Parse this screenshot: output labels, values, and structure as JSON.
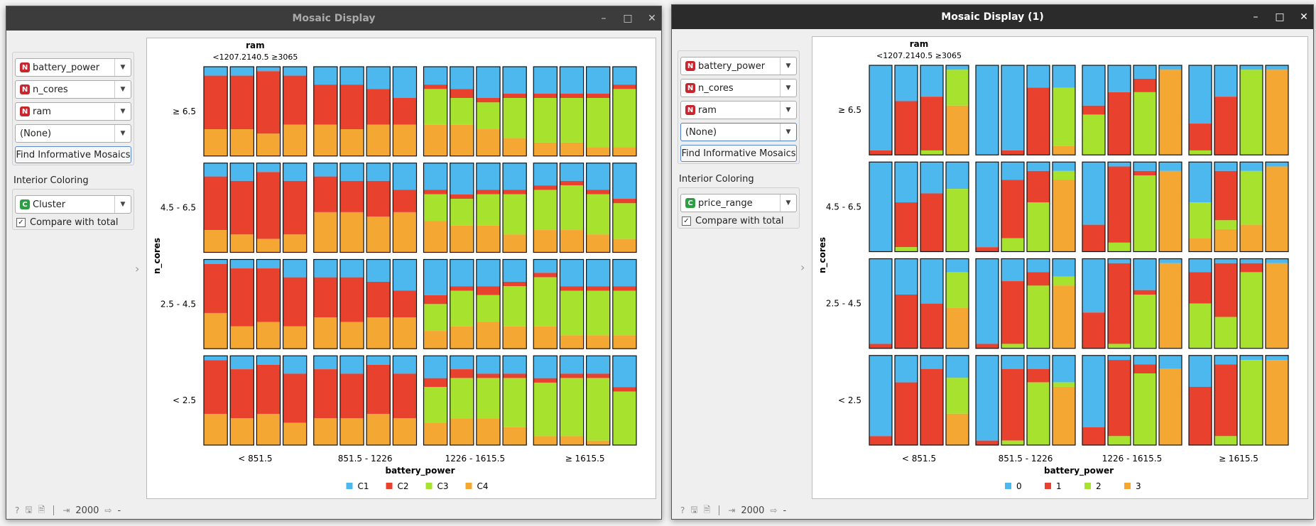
{
  "colors": {
    "blue": "#4cb8ee",
    "red": "#e8412e",
    "green": "#a6e22e",
    "orange": "#f5a733"
  },
  "windows": [
    {
      "title": "Mosaic Display",
      "variables": [
        "battery_power",
        "n_cores",
        "ram",
        "(None)"
      ],
      "find_button": "Find Informative Mosaics",
      "interior_label": "Interior Coloring",
      "interior_value": "Cluster",
      "compare_label": "Compare with total",
      "compare_checked": "✓",
      "status_count": "2000",
      "status_out": "-",
      "plot": {
        "top_label": "ram",
        "top_ticks": "<1207.2140.5 ≥3065",
        "y_title": "n_cores",
        "x_title": "battery_power",
        "row_labels": [
          "≥ 6.5",
          "4.5 - 6.5",
          "2.5 - 4.5",
          "< 2.5"
        ],
        "col_labels": [
          "< 851.5",
          "851.5 - 1226",
          "1226 - 1615.5",
          "≥ 1615.5"
        ],
        "legend": [
          {
            "label": "C1",
            "color": "#4cb8ee"
          },
          {
            "label": "C2",
            "color": "#e8412e"
          },
          {
            "label": "C3",
            "color": "#a6e22e"
          },
          {
            "label": "C4",
            "color": "#f5a733"
          }
        ],
        "cells": [
          [
            [
              [
                0.1,
                0.6,
                0,
                0.3
              ],
              [
                0.1,
                0.6,
                0,
                0.3
              ],
              [
                0.05,
                0.7,
                0,
                0.25
              ],
              [
                0.1,
                0.55,
                0,
                0.35
              ]
            ],
            [
              [
                0.2,
                0.45,
                0,
                0.35
              ],
              [
                0.2,
                0.5,
                0,
                0.3
              ],
              [
                0.25,
                0.4,
                0,
                0.35
              ],
              [
                0.35,
                0.3,
                0,
                0.35
              ]
            ],
            [
              [
                0.2,
                0.05,
                0.4,
                0.35
              ],
              [
                0.25,
                0.1,
                0.3,
                0.35
              ],
              [
                0.35,
                0.05,
                0.3,
                0.3
              ],
              [
                0.3,
                0.05,
                0.45,
                0.2
              ]
            ],
            [
              [
                0.3,
                0.05,
                0.5,
                0.15
              ],
              [
                0.3,
                0.05,
                0.5,
                0.15
              ],
              [
                0.3,
                0.05,
                0.55,
                0.1
              ],
              [
                0.2,
                0.05,
                0.65,
                0.1
              ]
            ]
          ],
          [
            [
              [
                0.15,
                0.6,
                0,
                0.25
              ],
              [
                0.2,
                0.6,
                0,
                0.2
              ],
              [
                0.1,
                0.75,
                0,
                0.15
              ],
              [
                0.2,
                0.6,
                0,
                0.2
              ]
            ],
            [
              [
                0.15,
                0.4,
                0,
                0.45
              ],
              [
                0.2,
                0.35,
                0,
                0.45
              ],
              [
                0.2,
                0.4,
                0,
                0.4
              ],
              [
                0.3,
                0.25,
                0,
                0.45
              ]
            ],
            [
              [
                0.3,
                0.05,
                0.3,
                0.35
              ],
              [
                0.35,
                0.05,
                0.3,
                0.3
              ],
              [
                0.3,
                0.05,
                0.35,
                0.3
              ],
              [
                0.3,
                0.05,
                0.45,
                0.2
              ]
            ],
            [
              [
                0.25,
                0.05,
                0.45,
                0.25
              ],
              [
                0.2,
                0.05,
                0.5,
                0.25
              ],
              [
                0.3,
                0.05,
                0.45,
                0.2
              ],
              [
                0.4,
                0.05,
                0.4,
                0.15
              ]
            ]
          ],
          [
            [
              [
                0.05,
                0.55,
                0,
                0.4
              ],
              [
                0.1,
                0.65,
                0,
                0.25
              ],
              [
                0.1,
                0.6,
                0,
                0.3
              ],
              [
                0.2,
                0.55,
                0,
                0.25
              ]
            ],
            [
              [
                0.2,
                0.45,
                0,
                0.35
              ],
              [
                0.2,
                0.5,
                0,
                0.3
              ],
              [
                0.25,
                0.4,
                0,
                0.35
              ],
              [
                0.35,
                0.3,
                0,
                0.35
              ]
            ],
            [
              [
                0.4,
                0.1,
                0.3,
                0.2
              ],
              [
                0.3,
                0.05,
                0.4,
                0.25
              ],
              [
                0.3,
                0.1,
                0.3,
                0.3
              ],
              [
                0.25,
                0.05,
                0.45,
                0.25
              ]
            ],
            [
              [
                0.15,
                0.05,
                0.55,
                0.25
              ],
              [
                0.3,
                0.05,
                0.5,
                0.15
              ],
              [
                0.3,
                0.05,
                0.5,
                0.15
              ],
              [
                0.3,
                0.05,
                0.5,
                0.15
              ]
            ]
          ],
          [
            [
              [
                0.05,
                0.6,
                0,
                0.35
              ],
              [
                0.15,
                0.55,
                0,
                0.3
              ],
              [
                0.1,
                0.55,
                0,
                0.35
              ],
              [
                0.2,
                0.55,
                0,
                0.25
              ]
            ],
            [
              [
                0.15,
                0.55,
                0,
                0.3
              ],
              [
                0.2,
                0.5,
                0,
                0.3
              ],
              [
                0.1,
                0.55,
                0,
                0.35
              ],
              [
                0.2,
                0.5,
                0,
                0.3
              ]
            ],
            [
              [
                0.25,
                0.1,
                0.4,
                0.25
              ],
              [
                0.15,
                0.1,
                0.45,
                0.3
              ],
              [
                0.2,
                0.05,
                0.45,
                0.3
              ],
              [
                0.2,
                0.05,
                0.55,
                0.2
              ]
            ],
            [
              [
                0.25,
                0.05,
                0.6,
                0.1
              ],
              [
                0.2,
                0.05,
                0.65,
                0.1
              ],
              [
                0.2,
                0.05,
                0.7,
                0.05
              ],
              [
                0.35,
                0.05,
                0.6,
                0
              ]
            ]
          ]
        ]
      }
    },
    {
      "title": "Mosaic Display (1)",
      "variables": [
        "battery_power",
        "n_cores",
        "ram",
        "(None)"
      ],
      "find_button": "Find Informative Mosaics",
      "interior_label": "Interior Coloring",
      "interior_value": "price_range",
      "compare_label": "Compare with total",
      "compare_checked": "✓",
      "status_count": "2000",
      "status_out": "-",
      "plot": {
        "top_label": "ram",
        "top_ticks": "<1207.2140.5 ≥3065",
        "y_title": "n_cores",
        "x_title": "battery_power",
        "row_labels": [
          "≥ 6.5",
          "4.5 - 6.5",
          "2.5 - 4.5",
          "< 2.5"
        ],
        "col_labels": [
          "< 851.5",
          "851.5 - 1226",
          "1226 - 1615.5",
          "≥ 1615.5"
        ],
        "legend": [
          {
            "label": "0",
            "color": "#4cb8ee"
          },
          {
            "label": "1",
            "color": "#e8412e"
          },
          {
            "label": "2",
            "color": "#a6e22e"
          },
          {
            "label": "3",
            "color": "#f5a733"
          }
        ],
        "cells": [
          [
            [
              [
                0.95,
                0.05,
                0,
                0
              ],
              [
                0.4,
                0.6,
                0,
                0
              ],
              [
                0.35,
                0.6,
                0.05,
                0
              ],
              [
                0.05,
                0,
                0.4,
                0.55
              ]
            ],
            [
              [
                1,
                0,
                0,
                0
              ],
              [
                0.95,
                0.05,
                0,
                0
              ],
              [
                0.25,
                0.75,
                0,
                0
              ],
              [
                0.25,
                0,
                0.65,
                0.1
              ]
            ],
            [
              [
                0.45,
                0.1,
                0.45,
                0
              ],
              [
                0.3,
                0.7,
                0,
                0
              ],
              [
                0.15,
                0.15,
                0.7,
                0
              ],
              [
                0.05,
                0,
                0,
                0.95
              ]
            ],
            [
              [
                0.65,
                0.3,
                0.05,
                0
              ],
              [
                0.35,
                0.65,
                0,
                0
              ],
              [
                0.05,
                0,
                0.95,
                0
              ],
              [
                0.05,
                0,
                0,
                0.95
              ]
            ]
          ],
          [
            [
              [
                1,
                0,
                0,
                0
              ],
              [
                0.45,
                0.5,
                0.05,
                0
              ],
              [
                0.35,
                0.65,
                0,
                0
              ],
              [
                0.3,
                0,
                0.7,
                0
              ]
            ],
            [
              [
                0.95,
                0.05,
                0,
                0
              ],
              [
                0.2,
                0.65,
                0.15,
                0
              ],
              [
                0.1,
                0.35,
                0.55,
                0
              ],
              [
                0.1,
                0,
                0.1,
                0.8
              ]
            ],
            [
              [
                0.7,
                0.3,
                0,
                0
              ],
              [
                0.05,
                0.85,
                0.1,
                0
              ],
              [
                0.1,
                0.05,
                0.85,
                0
              ],
              [
                0.1,
                0,
                0,
                0.9
              ]
            ],
            [
              [
                0.45,
                0,
                0.4,
                0.15
              ],
              [
                0.1,
                0.55,
                0.1,
                0.25
              ],
              [
                0.1,
                0,
                0.6,
                0.3
              ],
              [
                0.05,
                0,
                0,
                0.95
              ]
            ]
          ],
          [
            [
              [
                0.95,
                0.05,
                0,
                0
              ],
              [
                0.4,
                0.6,
                0,
                0
              ],
              [
                0.5,
                0.5,
                0,
                0
              ],
              [
                0.15,
                0,
                0.4,
                0.45
              ]
            ],
            [
              [
                0.95,
                0.05,
                0,
                0
              ],
              [
                0.25,
                0.7,
                0.05,
                0
              ],
              [
                0.15,
                0.15,
                0.7,
                0
              ],
              [
                0.2,
                0,
                0.1,
                0.7
              ]
            ],
            [
              [
                0.6,
                0.4,
                0,
                0
              ],
              [
                0.05,
                0.9,
                0.05,
                0
              ],
              [
                0.35,
                0.05,
                0.6,
                0
              ],
              [
                0.05,
                0,
                0,
                0.95
              ]
            ],
            [
              [
                0.15,
                0.35,
                0.5,
                0
              ],
              [
                0.05,
                0.6,
                0.35,
                0
              ],
              [
                0.05,
                0.1,
                0.85,
                0
              ],
              [
                0.05,
                0,
                0,
                0.95
              ]
            ]
          ],
          [
            [
              [
                0.9,
                0.1,
                0,
                0
              ],
              [
                0.3,
                0.7,
                0,
                0
              ],
              [
                0.15,
                0.85,
                0,
                0
              ],
              [
                0.25,
                0,
                0.4,
                0.35
              ]
            ],
            [
              [
                0.95,
                0.05,
                0,
                0
              ],
              [
                0.15,
                0.8,
                0.05,
                0
              ],
              [
                0.15,
                0.15,
                0.7,
                0
              ],
              [
                0.3,
                0,
                0.05,
                0.65
              ]
            ],
            [
              [
                0.8,
                0.2,
                0,
                0
              ],
              [
                0.05,
                0.85,
                0.1,
                0
              ],
              [
                0.1,
                0.1,
                0.8,
                0
              ],
              [
                0.15,
                0,
                0,
                0.85
              ]
            ],
            [
              [
                0.35,
                0.65,
                0,
                0
              ],
              [
                0.1,
                0.8,
                0.1,
                0
              ],
              [
                0.05,
                0,
                0.95,
                0
              ],
              [
                0.05,
                0,
                0,
                0.95
              ]
            ]
          ]
        ]
      }
    }
  ]
}
